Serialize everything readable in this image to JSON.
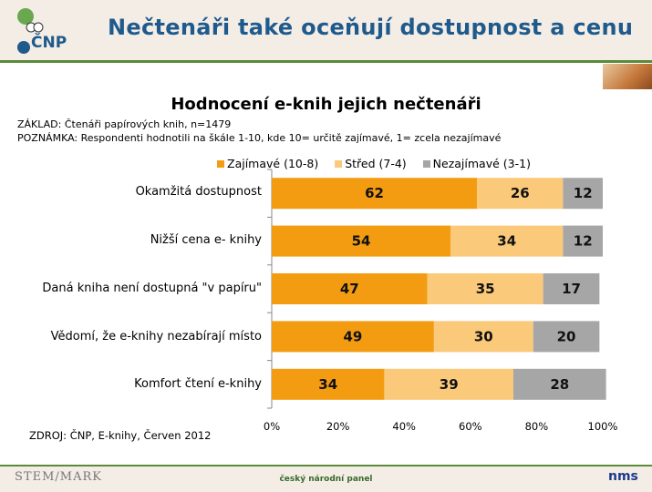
{
  "header": {
    "title": "Nečtenáři také oceňují dostupnost a cenu",
    "logo_text": "ČNP"
  },
  "chart_data": {
    "type": "bar",
    "orientation": "horizontal",
    "stacked": true,
    "title": "Hodnocení e-knih jejich nečtenáři",
    "categories": [
      "Okamžitá dostupnost",
      "Nižší cena e- knihy",
      "Daná kniha není dostupná \"v papíru\"",
      "Vědomí, že e-knihy nezabírají místo",
      "Komfort čtení e-knihy"
    ],
    "series": [
      {
        "name": "Zajímavé (10-8)",
        "color": "#F39C12",
        "values": [
          62,
          54,
          47,
          49,
          34
        ]
      },
      {
        "name": "Střed (7-4)",
        "color": "#FAC97A",
        "values": [
          26,
          34,
          35,
          30,
          39
        ]
      },
      {
        "name": "Nezajímavé (3-1)",
        "color": "#A6A6A6",
        "values": [
          12,
          12,
          17,
          20,
          28
        ]
      }
    ],
    "xlim": [
      0,
      100
    ],
    "xticks": [
      "0%",
      "20%",
      "40%",
      "60%",
      "80%",
      "100%"
    ],
    "legend": "top",
    "grid": false
  },
  "notes": {
    "base": "ZÁKLAD: Čtenáři papírových knih, n=1479",
    "note": "POZNÁMKA: Respondenti hodnotili na škále 1-10, kde 10= určitě zajímavé, 1= zcela nezajímavé",
    "source": "ZDROJ: ČNP, E-knihy, Červen 2012"
  },
  "footer": {
    "left_logo": "STEM/MARK",
    "center": "český národní panel",
    "right_logo": "nms"
  }
}
